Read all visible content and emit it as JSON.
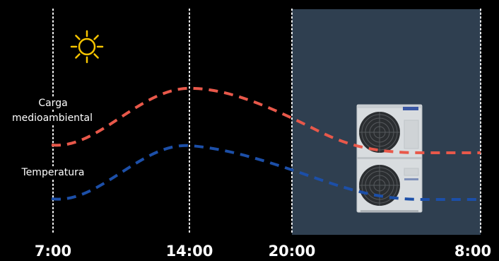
{
  "labels": {
    "load_line1": "Carga",
    "load_line2": "medioambiental",
    "temperature": "Temperatura"
  },
  "time_ticks": [
    "7:00",
    "14:00",
    "20:00",
    "8:00"
  ],
  "colors": {
    "background": "#000000",
    "night_panel": "#2f3f50",
    "load_curve": "#e8584a",
    "temperature_curve": "#1c4fa8",
    "divider": "#ffffff",
    "sun": "#f5c400"
  },
  "icons": {
    "sun": "sun-icon",
    "outdoor_unit": "outdoor-unit-image"
  }
}
